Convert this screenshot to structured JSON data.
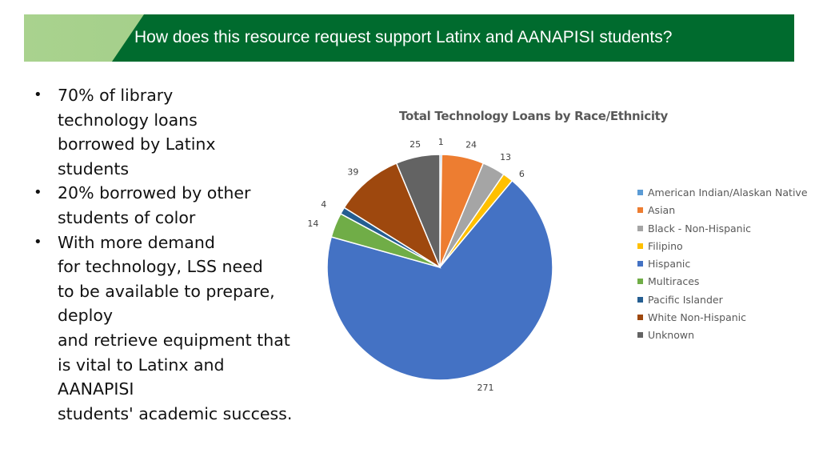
{
  "header": {
    "title": "How does this resource request support Latinx and AANAPISI students?",
    "colors": {
      "dark": "#006b2e",
      "light": "#a9d28e"
    }
  },
  "bullets": [
    {
      "lines": [
        "70% of library",
        "technology loans",
        "borrowed by Latinx",
        "students"
      ]
    },
    {
      "lines": [
        "20% borrowed by other",
        "students of color"
      ]
    },
    {
      "lines": [
        "With more demand",
        "for technology, LSS need",
        "to be available to prepare,",
        "deploy",
        "and retrieve equipment that",
        "is vital to Latinx and",
        "AANAPISI",
        "students' academic success."
      ]
    }
  ],
  "chart_data": {
    "type": "pie",
    "title": "Total Technology Loans by Race/Ethnicity",
    "legend_position": "right",
    "categories": [
      "American Indian/Alaskan Native",
      "Asian",
      "Black - Non-Hispanic",
      "Filipino",
      "Hispanic",
      "Multiraces",
      "Pacific Islander",
      "White Non-Hispanic",
      "Unknown"
    ],
    "values": [
      1,
      24,
      13,
      6,
      271,
      14,
      4,
      39,
      25
    ],
    "colors": [
      "#5b9bd5",
      "#ed7d31",
      "#a5a5a5",
      "#ffc000",
      "#4472c4",
      "#70ad47",
      "#255e91",
      "#9e480e",
      "#636363"
    ]
  }
}
